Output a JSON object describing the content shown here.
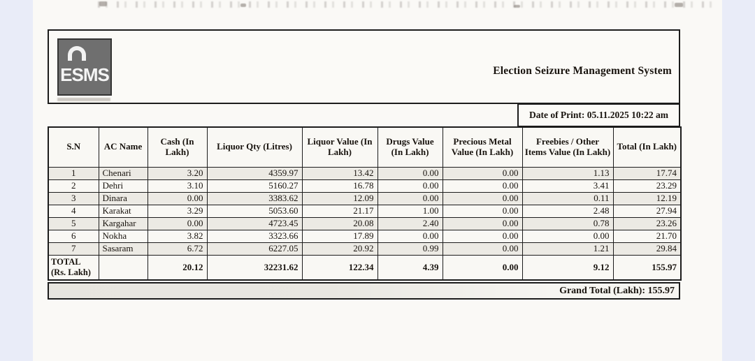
{
  "header": {
    "logo_text": "ESMS",
    "title": "Election Seizure Management System",
    "date_of_print": "Date of Print: 05.11.2025 10:22 am"
  },
  "table": {
    "columns": [
      "S.N",
      "AC Name",
      "Cash (In Lakh)",
      "Liquor Qty (Litres)",
      "Liquor Value (In Lakh)",
      "Drugs Value (In Lakh)",
      "Precious Metal Value (In Lakh)",
      "Freebies / Other Items Value (In Lakh)",
      "Total (In Lakh)"
    ],
    "rows": [
      [
        "1",
        "Chenari",
        "3.20",
        "4359.97",
        "13.42",
        "0.00",
        "0.00",
        "1.13",
        "17.74"
      ],
      [
        "2",
        "Dehri",
        "3.10",
        "5160.27",
        "16.78",
        "0.00",
        "0.00",
        "3.41",
        "23.29"
      ],
      [
        "3",
        "Dinara",
        "0.00",
        "3383.62",
        "12.09",
        "0.00",
        "0.00",
        "0.11",
        "12.19"
      ],
      [
        "4",
        "Karakat",
        "3.29",
        "5053.60",
        "21.17",
        "1.00",
        "0.00",
        "2.48",
        "27.94"
      ],
      [
        "5",
        "Kargahar",
        "0.00",
        "4723.45",
        "20.08",
        "2.40",
        "0.00",
        "0.78",
        "23.26"
      ],
      [
        "6",
        "Nokha",
        "3.82",
        "3323.66",
        "17.89",
        "0.00",
        "0.00",
        "0.00",
        "21.70"
      ],
      [
        "7",
        "Sasaram",
        "6.72",
        "6227.05",
        "20.92",
        "0.99",
        "0.00",
        "1.21",
        "29.84"
      ]
    ],
    "total_row": {
      "label": "TOTAL (Rs. Lakh)",
      "values": [
        "20.12",
        "32231.62",
        "122.34",
        "4.39",
        "0.00",
        "9.12",
        "155.97"
      ]
    },
    "grand_total": "Grand Total (Lakh): 155.97"
  },
  "colors": {
    "paper": "#faf9f6",
    "margin_strip": "#e9ecf8",
    "ink": "#18130e",
    "logo_gray": "#6f6f6f",
    "row_shade": "#eceae4"
  }
}
